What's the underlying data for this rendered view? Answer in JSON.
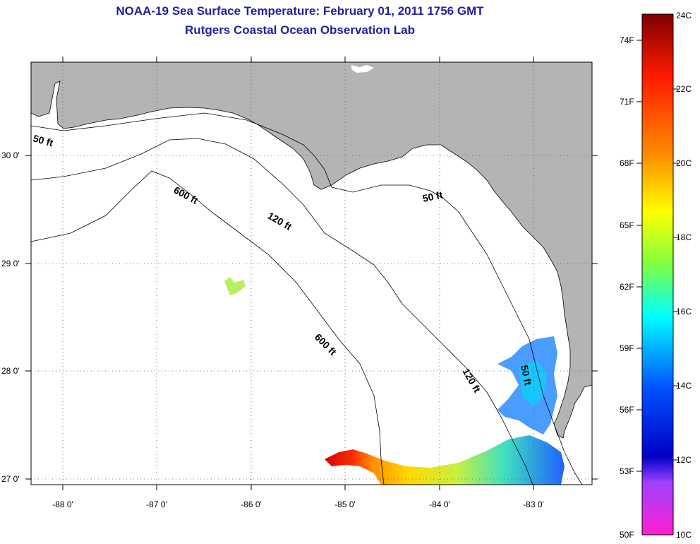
{
  "header": {
    "title": "NOAA-19 Sea Surface Temperature:  February 01, 2011 1756 GMT",
    "subtitle": "Rutgers Coastal Ocean Observation Lab"
  },
  "map": {
    "lon_labels": [
      "-88 0'",
      "-87 0'",
      "-86 0'",
      "-85 0'",
      "-84 0'",
      "-83 0'"
    ],
    "lat_labels": [
      "30 0'",
      "29 0'",
      "28 0'",
      "27 0'"
    ],
    "contour_labels": [
      "50 ft",
      "600 ft",
      "120 ft",
      "50 ft",
      "600 ft",
      "120 ft",
      "50 ft"
    ]
  },
  "colorbar": {
    "f_labels": [
      "74F",
      "71F",
      "68F",
      "65F",
      "62F",
      "59F",
      "56F",
      "53F",
      "50F"
    ],
    "c_labels": [
      "24C",
      "22C",
      "20C",
      "18C",
      "16C",
      "14C",
      "12C",
      "10C"
    ],
    "colors": {
      "top": "#7f0000",
      "red": "#ff1a00",
      "orange": "#ff8c00",
      "yellow": "#ffff00",
      "green": "#80ff40",
      "cyan": "#00ffff",
      "blue": "#0050ff",
      "deep_blue": "#0000c8",
      "purple": "#a040ff",
      "magenta": "#ff20d0"
    }
  }
}
